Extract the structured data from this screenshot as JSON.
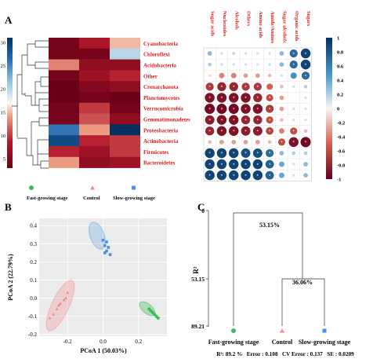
{
  "panels": {
    "a": "A",
    "b": "B",
    "c": "C"
  },
  "colorbar_left_ticks": [
    "30",
    "25",
    "20",
    "15",
    "10",
    "5"
  ],
  "colorbar_right_ticks": [
    "1",
    "0.8",
    "0.6",
    "0.4",
    "0.2",
    "0",
    "-0.2",
    "-0.4",
    "-0.6",
    "-0.8",
    "-1"
  ],
  "legend": {
    "fast": "Fast-growing stage",
    "control": "Control",
    "slow": "Slow-growing stage"
  },
  "colors": {
    "fast": "#3dbb5a",
    "control": "#f28c8c",
    "slow": "#4a8fe0",
    "label_red": "#e01c1c"
  },
  "chart_data": [
    {
      "type": "heatmap",
      "rows": [
        "Cyanobacteria",
        "Chloroflexi",
        "Acidobacteria",
        "Other",
        "Crenarchaeota",
        "Planctomycetes",
        "Verrucomicrobia",
        "Gemmatimonadetes",
        "Proteobacteria",
        "Actinobacteria",
        "Firmicutes",
        "Bacteroidetes"
      ],
      "columns": [
        "Fast-growing stage",
        "Control",
        "Slow-growing stage"
      ],
      "values": [
        [
          4,
          8,
          15
        ],
        [
          4,
          4,
          20
        ],
        [
          13,
          6,
          6
        ],
        [
          4,
          7,
          9
        ],
        [
          3,
          5,
          6
        ],
        [
          3,
          4,
          3
        ],
        [
          4,
          10,
          4
        ],
        [
          4,
          11,
          6
        ],
        [
          26,
          14,
          31
        ],
        [
          29,
          9,
          10
        ],
        [
          9,
          7,
          10
        ],
        [
          14,
          6,
          7
        ]
      ],
      "colorbar_range": [
        3,
        31
      ]
    },
    {
      "type": "heatmap",
      "rows": [
        "Cyanobacteria",
        "Chloroflexi",
        "Acidobacteria",
        "Other",
        "Crenarchaeota",
        "Planctomycetes",
        "Verrucomicrobia",
        "Gemmatimonadetes",
        "Proteobacteria",
        "Actinobacteria",
        "Firmicutes",
        "Bacteroidetes"
      ],
      "columns": [
        "Sugar acids",
        "Nucleotides",
        "Alcohols",
        "Others",
        "Amino acids",
        "Amide/Amines",
        "Sugar alcohols",
        "Organic acids",
        "Sugars"
      ],
      "values": [
        [
          0.3,
          0.1,
          0.15,
          0.1,
          0.1,
          0.1,
          0.3,
          0.7,
          0.9
        ],
        [
          0.2,
          0.1,
          0.1,
          0.1,
          0.1,
          0.1,
          0.3,
          0.7,
          0.9
        ],
        [
          -0.1,
          -0.4,
          -0.4,
          -0.3,
          -0.3,
          -0.2,
          0.1,
          0.5,
          0.7
        ],
        [
          -0.7,
          -0.8,
          -0.8,
          -0.7,
          -0.7,
          -0.5,
          -0.2,
          0.1,
          0.2
        ],
        [
          -0.9,
          -0.9,
          -0.9,
          -0.9,
          -0.8,
          -0.6,
          -0.3,
          0.0,
          -0.1
        ],
        [
          -0.95,
          -0.95,
          -0.95,
          -0.9,
          -0.9,
          -0.7,
          -0.3,
          -0.1,
          -0.1
        ],
        [
          -0.85,
          -0.9,
          -0.9,
          -0.8,
          -0.8,
          -0.6,
          -0.2,
          0.1,
          0.1
        ],
        [
          -0.8,
          -0.9,
          -0.9,
          -0.85,
          -0.85,
          -0.65,
          -0.4,
          -0.6,
          -0.2
        ],
        [
          -0.2,
          -0.3,
          -0.3,
          -0.3,
          -0.3,
          -0.2,
          -0.6,
          -0.9,
          -0.95
        ],
        [
          0.9,
          0.9,
          0.9,
          0.85,
          0.85,
          0.7,
          0.3,
          0.2,
          0.2
        ],
        [
          0.9,
          0.9,
          0.9,
          0.9,
          0.9,
          0.75,
          0.4,
          0.1,
          0.3
        ],
        [
          0.9,
          0.9,
          0.9,
          0.9,
          0.9,
          0.75,
          0.4,
          0.1,
          0.3
        ]
      ],
      "colorbar_range": [
        -1,
        1
      ]
    },
    {
      "type": "scatter",
      "xlabel": "PCoA 1 (50.03%)",
      "ylabel": "PCoA 2 (22.79%)",
      "xlim": [
        -0.36,
        0.36
      ],
      "ylim": [
        -0.21,
        0.44
      ],
      "xticks": [
        "-0.2",
        "0.0",
        "0.2"
      ],
      "xtick_values": [
        -0.2,
        0.0,
        0.2
      ],
      "yticks": [
        "-0.2",
        "-0.1",
        "0.0",
        "0.1",
        "0.2",
        "0.3",
        "0.4"
      ],
      "ytick_values": [
        -0.2,
        -0.1,
        0.0,
        0.1,
        0.2,
        0.3,
        0.4
      ],
      "grid": true,
      "series": [
        {
          "name": "Fast-growing stage",
          "marker": "circle",
          "points": [
            [
              0.26,
              -0.06
            ],
            [
              0.28,
              -0.08
            ],
            [
              0.29,
              -0.09
            ],
            [
              0.3,
              -0.1
            ],
            [
              0.27,
              -0.07
            ],
            [
              0.31,
              -0.11
            ]
          ]
        },
        {
          "name": "Control",
          "marker": "triangle",
          "points": [
            [
              -0.2,
              0.03
            ],
            [
              -0.22,
              -0.01
            ],
            [
              -0.24,
              -0.03
            ],
            [
              -0.26,
              -0.06
            ],
            [
              -0.28,
              -0.09
            ],
            [
              -0.3,
              -0.11
            ],
            [
              -0.25,
              -0.04
            ],
            [
              -0.21,
              0.0
            ]
          ]
        },
        {
          "name": "Slow-growing stage",
          "marker": "square",
          "points": [
            [
              0.0,
              0.32
            ],
            [
              0.02,
              0.31
            ],
            [
              0.01,
              0.29
            ],
            [
              0.03,
              0.28
            ],
            [
              0.02,
              0.26
            ],
            [
              0.04,
              0.24
            ],
            [
              0.01,
              0.25
            ]
          ]
        }
      ]
    },
    {
      "type": "dendrogram",
      "ylabel": "R²",
      "yticks": [
        "0",
        "53.15",
        "89.21"
      ],
      "ytick_values": [
        0,
        53.15,
        89.21
      ],
      "leaves": [
        "Fast-growing stage",
        "Control",
        "Slow-growing stage"
      ],
      "merges": [
        {
          "label": "36.06%",
          "height": 36.06,
          "children": [
            "Control",
            "Slow-growing stage"
          ]
        },
        {
          "label": "53.15%",
          "height": 89.21,
          "children": [
            "Fast-growing stage",
            "Control+Slow-growing stage"
          ]
        }
      ],
      "stats": "R²: 89.2 %   Error : 0.108   CV Error : 0.137   SE : 0.0209"
    }
  ]
}
